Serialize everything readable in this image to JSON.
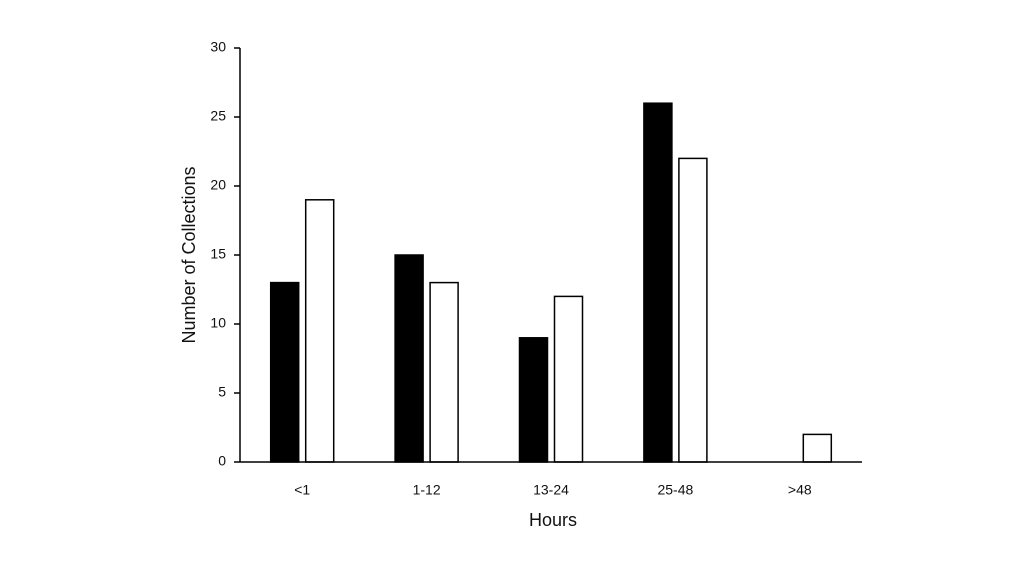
{
  "chart_data": {
    "type": "bar",
    "xlabel": "Hours",
    "ylabel": "Number of Collections",
    "categories": [
      "<1",
      "1-12",
      "13-24",
      "25-48",
      ">48"
    ],
    "series": [
      {
        "color": "#000000",
        "values": [
          13,
          15,
          9,
          26,
          0
        ]
      },
      {
        "color": "#ffffff",
        "values": [
          19,
          13,
          12,
          22,
          2
        ]
      }
    ],
    "edgecolor": "#000000",
    "ylim": [
      0,
      30
    ],
    "yticks": [
      0,
      5,
      10,
      15,
      20,
      25,
      30
    ],
    "grid": false
  }
}
